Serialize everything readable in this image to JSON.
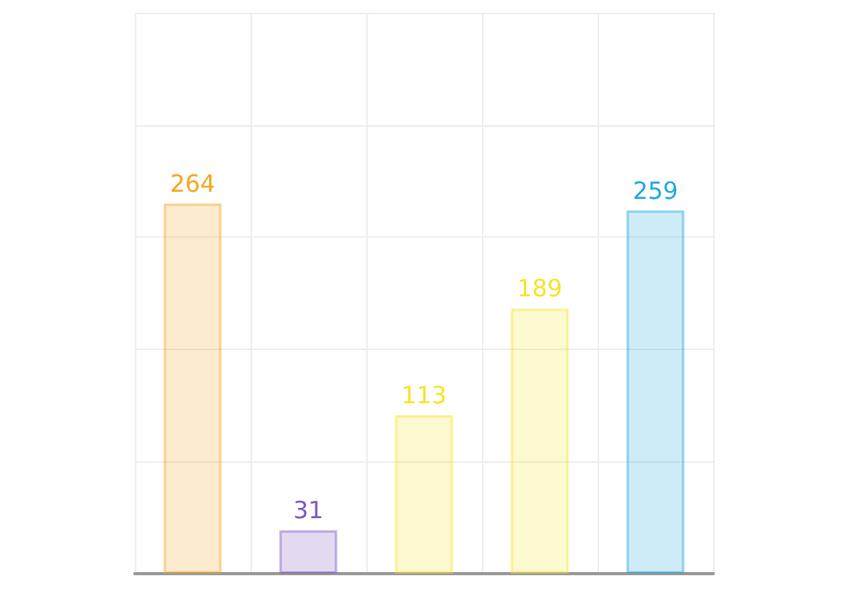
{
  "chart_data": {
    "type": "bar",
    "categories": [
      null,
      null,
      null,
      null,
      null
    ],
    "values": [
      264,
      31,
      113,
      189,
      259
    ],
    "colors": [
      "#f5a623",
      "#7e57c2",
      "#f7e32a",
      "#f7e32a",
      "#1ea7e1"
    ],
    "ylim": [
      0,
      400
    ],
    "yticks": [
      {
        "value": 0,
        "label": null
      },
      {
        "value": 80,
        "label": null
      },
      {
        "value": 160,
        "label": null
      },
      {
        "value": 240,
        "label": null
      },
      {
        "value": 320,
        "label": null
      },
      {
        "value": 400,
        "label": null
      }
    ],
    "grid": true,
    "data_labels": true
  }
}
